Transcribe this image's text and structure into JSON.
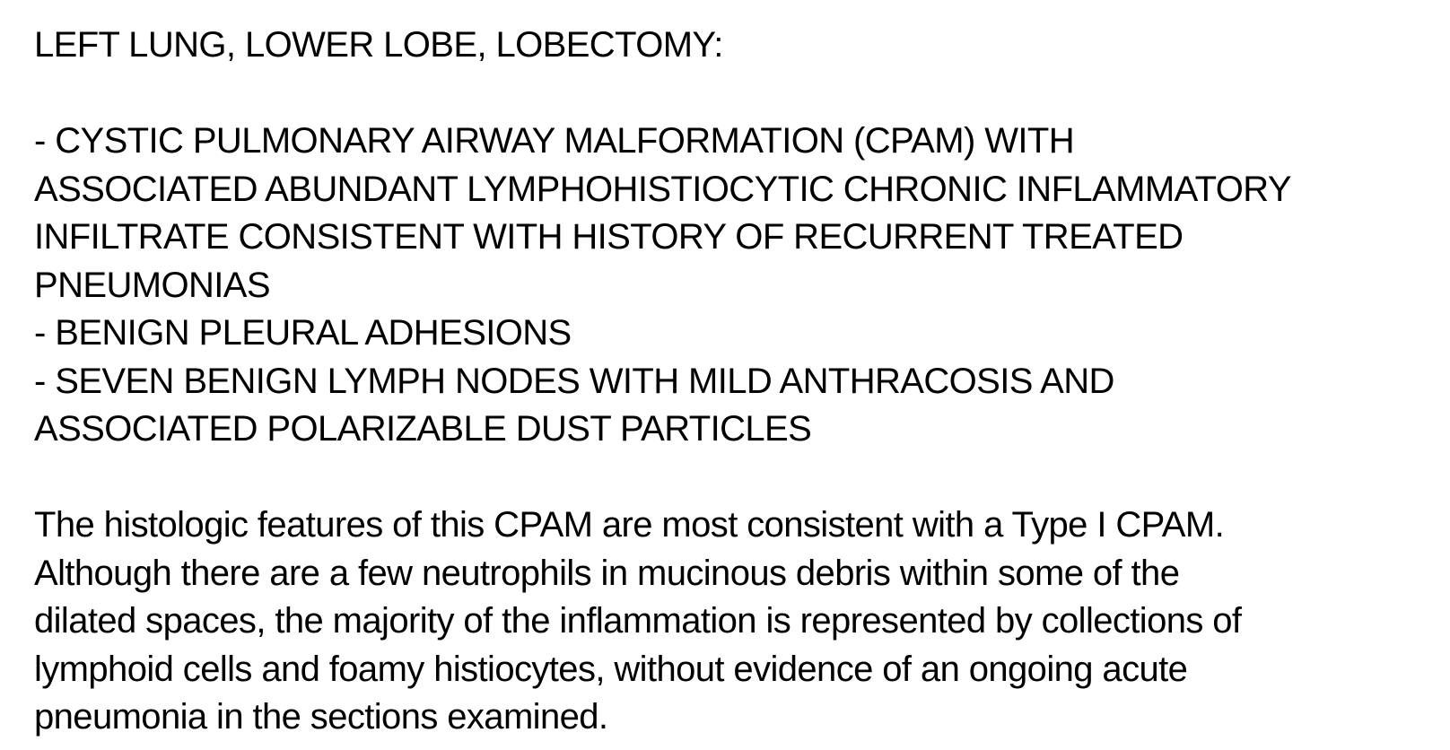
{
  "report": {
    "header": "LEFT LUNG, LOWER LOBE, LOBECTOMY:",
    "diagnoses": [
      {
        "lines": [
          "- CYSTIC PULMONARY AIRWAY MALFORMATION (CPAM) WITH",
          "ASSOCIATED ABUNDANT LYMPHOHISTIOCYTIC CHRONIC INFLAMMATORY",
          "INFILTRATE CONSISTENT WITH HISTORY OF RECURRENT TREATED",
          "PNEUMONIAS"
        ]
      },
      {
        "lines": [
          "- BENIGN PLEURAL ADHESIONS"
        ]
      },
      {
        "lines": [
          "- SEVEN BENIGN LYMPH NODES WITH MILD ANTHRACOSIS AND",
          "ASSOCIATED POLARIZABLE DUST PARTICLES"
        ]
      }
    ],
    "comment": {
      "lines": [
        "The histologic features of this CPAM are most consistent with a Type I CPAM.",
        "Although there are a few neutrophils in mucinous debris within some of the",
        "dilated spaces, the majority of the inflammation is represented by collections of",
        "lymphoid cells and foamy histiocytes, without evidence of an ongoing acute",
        "pneumonia in the sections examined."
      ]
    }
  }
}
